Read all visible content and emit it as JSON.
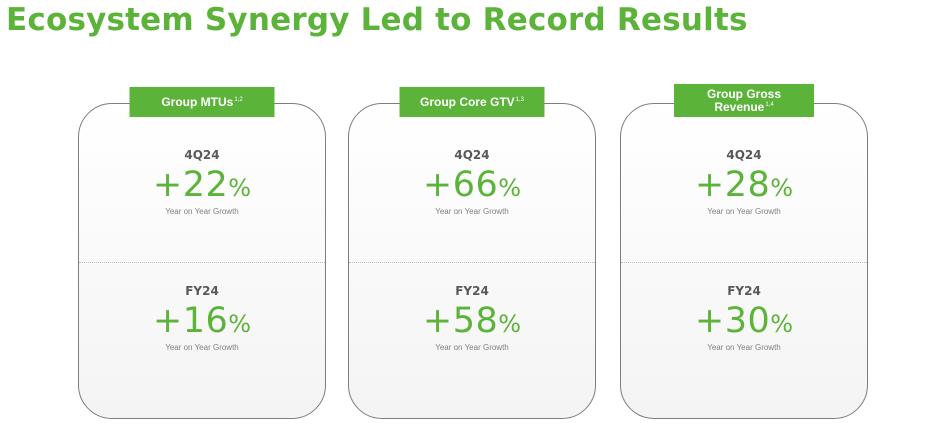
{
  "title": "Ecosystem Synergy Led to Record Results",
  "cards": [
    {
      "label": "Group MTUs",
      "label_sup": "1,2",
      "top": {
        "period": "4Q24",
        "value": "+22",
        "unit": "%",
        "desc": "Year on Year Growth"
      },
      "bottom": {
        "period": "FY24",
        "value": "+16",
        "unit": "%",
        "desc": "Year on Year Growth"
      }
    },
    {
      "label": "Group Core GTV",
      "label_sup": "1,3",
      "top": {
        "period": "4Q24",
        "value": "+66",
        "unit": "%",
        "desc": "Year on Year Growth"
      },
      "bottom": {
        "period": "FY24",
        "value": "+58",
        "unit": "%",
        "desc": "Year on Year Growth"
      }
    },
    {
      "label": "Group Gross Revenue",
      "label_sup": "1,4",
      "top": {
        "period": "4Q24",
        "value": "+28",
        "unit": "%",
        "desc": "Year on Year Growth"
      },
      "bottom": {
        "period": "FY24",
        "value": "+30",
        "unit": "%",
        "desc": "Year on Year Growth"
      }
    }
  ],
  "colors": {
    "accent_green": "#5cb33a",
    "card_border": "#7d7d7d",
    "period_text": "#595959",
    "desc_text": "#7f7f7f"
  }
}
